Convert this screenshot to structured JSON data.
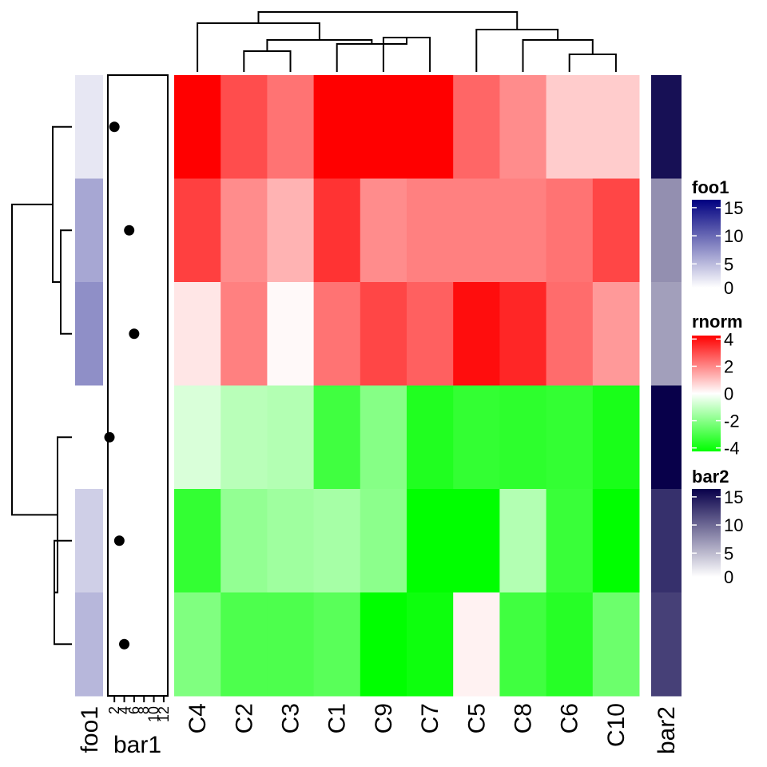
{
  "chart_data": {
    "type": "heatmap",
    "columns": [
      "C4",
      "C2",
      "C3",
      "C1",
      "C9",
      "C7",
      "C5",
      "C8",
      "C6",
      "C10"
    ],
    "rows": 6,
    "matrix": [
      [
        4.0,
        2.8,
        2.2,
        4.2,
        4.2,
        4.2,
        2.4,
        1.8,
        0.8,
        0.8
      ],
      [
        3.0,
        1.8,
        1.2,
        3.2,
        1.8,
        2.0,
        2.0,
        2.0,
        2.2,
        2.9
      ],
      [
        0.4,
        2.0,
        0.1,
        2.2,
        2.9,
        2.5,
        3.8,
        3.4,
        2.3,
        1.6
      ],
      [
        -0.6,
        -1.1,
        -1.2,
        -3.0,
        -1.9,
        -3.5,
        -3.2,
        -3.3,
        -3.2,
        -3.6
      ],
      [
        -3.2,
        -1.7,
        -1.5,
        -1.4,
        -1.8,
        -4.2,
        -4.2,
        -1.2,
        -3.1,
        -4.1
      ],
      [
        -2.0,
        -2.8,
        -2.8,
        -2.6,
        -4.0,
        -3.8,
        0.2,
        -3.0,
        -3.4,
        -2.3
      ]
    ],
    "color_scale": {
      "name": "rnorm",
      "breaks": [
        -4,
        0,
        4
      ],
      "colors": [
        "#00ff00",
        "#ffffff",
        "#ff0000"
      ],
      "ticks": [
        "4",
        "2",
        "0",
        "-2",
        "-4"
      ]
    },
    "row_annotation_foo1": {
      "label": "foo1",
      "values": [
        1.5,
        5.5,
        7.0,
        0.0,
        3.0,
        4.5
      ],
      "scale": {
        "min": 0,
        "max": 16,
        "low": "#ffffff",
        "high": "#000080"
      },
      "ticks": [
        "15",
        "10",
        "5",
        "0"
      ]
    },
    "row_annotation_bar1": {
      "label": "bar1",
      "values": [
        2,
        5,
        6,
        1,
        3,
        4
      ],
      "xlim": [
        1,
        12.5
      ],
      "ticks": [
        "2",
        "4",
        "6",
        "8",
        "10",
        "12"
      ]
    },
    "row_annotation_bar2": {
      "label": "bar2",
      "values": [
        15,
        7,
        6,
        16,
        13,
        12
      ],
      "scale": {
        "min": 0,
        "max": 16,
        "low": "#ffffff",
        "high": "#08004a"
      },
      "ticks": [
        "15",
        "10",
        "5",
        "0"
      ]
    },
    "legends": [
      "foo1",
      "rnorm",
      "bar2"
    ]
  },
  "colors": {
    "background": "#ffffff",
    "dendrogram": "#000000",
    "cell_border": "#ffffff"
  }
}
